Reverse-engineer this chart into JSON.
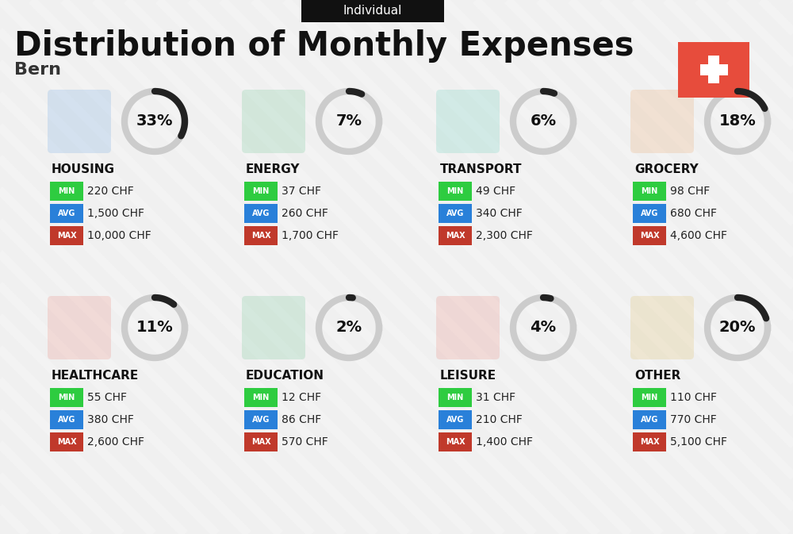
{
  "title": "Distribution of Monthly Expenses",
  "subtitle": "Individual",
  "location": "Bern",
  "bg_color": "#f0f0f0",
  "categories": [
    {
      "name": "HOUSING",
      "pct": 33,
      "min_val": "220 CHF",
      "avg_val": "1,500 CHF",
      "max_val": "10,000 CHF",
      "row": 0,
      "col": 0
    },
    {
      "name": "ENERGY",
      "pct": 7,
      "min_val": "37 CHF",
      "avg_val": "260 CHF",
      "max_val": "1,700 CHF",
      "row": 0,
      "col": 1
    },
    {
      "name": "TRANSPORT",
      "pct": 6,
      "min_val": "49 CHF",
      "avg_val": "340 CHF",
      "max_val": "2,300 CHF",
      "row": 0,
      "col": 2
    },
    {
      "name": "GROCERY",
      "pct": 18,
      "min_val": "98 CHF",
      "avg_val": "680 CHF",
      "max_val": "4,600 CHF",
      "row": 0,
      "col": 3
    },
    {
      "name": "HEALTHCARE",
      "pct": 11,
      "min_val": "55 CHF",
      "avg_val": "380 CHF",
      "max_val": "2,600 CHF",
      "row": 1,
      "col": 0
    },
    {
      "name": "EDUCATION",
      "pct": 2,
      "min_val": "12 CHF",
      "avg_val": "86 CHF",
      "max_val": "570 CHF",
      "row": 1,
      "col": 1
    },
    {
      "name": "LEISURE",
      "pct": 4,
      "min_val": "31 CHF",
      "avg_val": "210 CHF",
      "max_val": "1,400 CHF",
      "row": 1,
      "col": 2
    },
    {
      "name": "OTHER",
      "pct": 20,
      "min_val": "110 CHF",
      "avg_val": "770 CHF",
      "max_val": "5,100 CHF",
      "row": 1,
      "col": 3
    }
  ],
  "min_color": "#2ecc40",
  "avg_color": "#2980d9",
  "max_color": "#c0392b",
  "label_text_color": "#ffffff",
  "swiss_flag_color": "#e74c3c",
  "arc_color_dark": "#222222",
  "arc_color_light": "#cccccc"
}
